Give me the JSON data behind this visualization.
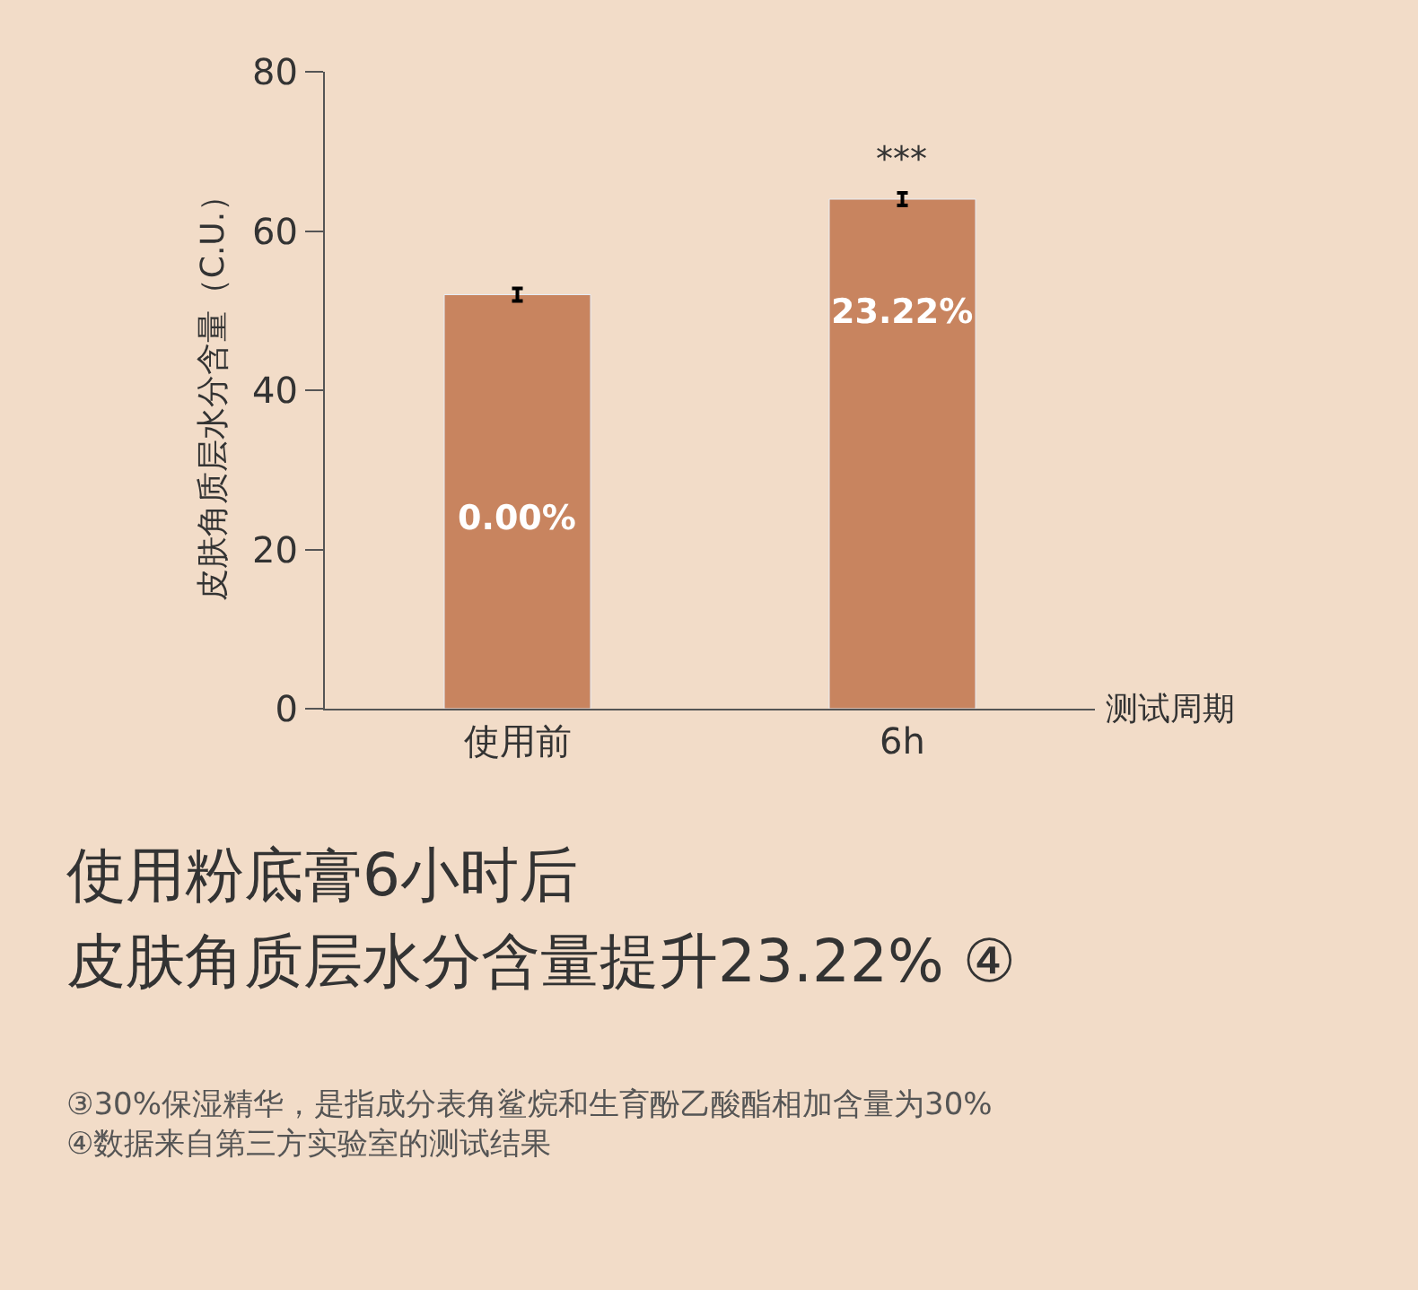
{
  "chart_data": {
    "type": "bar",
    "title": "使用粉底膏6小时后",
    "subtitle": "皮肤角质层水分含量提升23.22% ④",
    "ylabel": "皮肤角质层水分含量（C.U.）",
    "xlabel": "测试周期",
    "categories": [
      "使用前",
      "6h"
    ],
    "values": [
      52,
      64
    ],
    "errors": [
      0.8,
      0.8
    ],
    "color": "#c8845f",
    "ylim": [
      0,
      80
    ],
    "yticks": [
      0,
      20,
      40,
      60,
      80
    ],
    "grid": false,
    "legend": false,
    "annotations": [
      {
        "text": "***",
        "x": "6h",
        "y": 64
      },
      "0.00%",
      "23.22%",
      "③30%保湿精华，是指成分表角鲨烷和生育酚乙酸酯相加含量为30%",
      "④数据来自第三方实验室的测试结果"
    ]
  }
}
